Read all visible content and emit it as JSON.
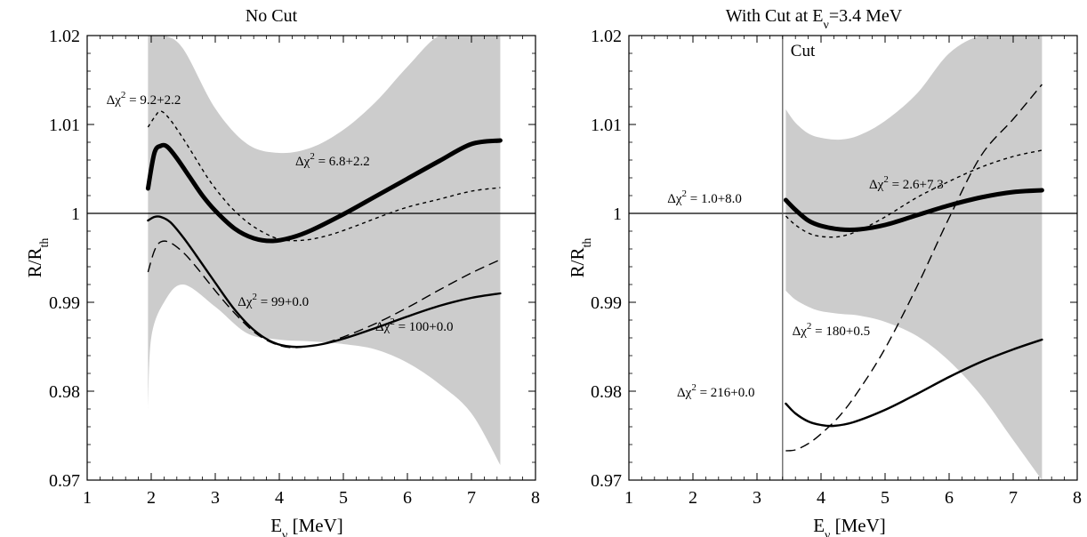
{
  "chart_data": [
    {
      "type": "line",
      "title": "No Cut",
      "xlabel": "Eν [MeV]",
      "ylabel": "R/Rth",
      "xlim": [
        1,
        8
      ],
      "ylim": [
        0.97,
        1.02
      ],
      "x_ticks": [
        "1",
        "2",
        "3",
        "4",
        "5",
        "6",
        "7",
        "8"
      ],
      "y_ticks": [
        "0.97",
        "0.98",
        "0.99",
        "1",
        "1.01",
        "1.02"
      ],
      "reference_line": 1.0,
      "band": {
        "x": [
          1.95,
          2.0,
          2.2,
          2.5,
          3.0,
          3.5,
          4.0,
          4.5,
          5.0,
          5.5,
          6.0,
          6.5,
          7.0,
          7.45
        ],
        "upper": [
          1.02,
          1.02,
          1.02,
          1.0185,
          1.0118,
          1.0078,
          1.0068,
          1.0074,
          1.0094,
          1.0125,
          1.0165,
          1.0205,
          1.0205,
          1.0205
        ],
        "lower": [
          0.978,
          0.986,
          0.99,
          0.992,
          0.9895,
          0.9865,
          0.9858,
          0.9856,
          0.9853,
          0.9847,
          0.9832,
          0.9808,
          0.9775,
          0.9717
        ]
      },
      "series": [
        {
          "label": "Δχ² = 6.8+2.2",
          "style": "thick",
          "x": [
            1.95,
            2.05,
            2.15,
            2.25,
            2.4,
            2.6,
            2.8,
            3.0,
            3.3,
            3.6,
            3.9,
            4.2,
            4.5,
            5.0,
            5.5,
            6.0,
            6.5,
            7.0,
            7.45
          ],
          "y": [
            1.0028,
            1.0068,
            1.0076,
            1.0075,
            1.0062,
            1.0041,
            1.002,
            1.0003,
            0.9983,
            0.9972,
            0.9969,
            0.9973,
            0.9981,
            0.9999,
            1.0019,
            1.0039,
            1.0059,
            1.0078,
            1.0082
          ]
        },
        {
          "label": "Δχ² = 9.2+2.2",
          "style": "short-dash",
          "x": [
            1.95,
            2.05,
            2.15,
            2.3,
            2.5,
            2.7,
            2.9,
            3.1,
            3.3,
            3.6,
            4.0,
            4.4,
            4.8,
            5.2,
            5.6,
            6.0,
            6.5,
            7.0,
            7.45
          ],
          "y": [
            1.0097,
            1.0108,
            1.0115,
            1.0105,
            1.0084,
            1.0061,
            1.0038,
            1.0019,
            1.0003,
            0.9985,
            0.9971,
            0.997,
            0.9976,
            0.9986,
            0.9997,
            1.0007,
            1.0016,
            1.0025,
            1.0029
          ]
        },
        {
          "label": "Δχ² = 99+0.0",
          "style": "long-dash",
          "x": [
            1.95,
            2.05,
            2.15,
            2.3,
            2.5,
            2.7,
            3.0,
            3.3,
            3.6,
            3.9,
            4.2,
            4.6,
            5.0,
            5.5,
            6.0,
            6.5,
            7.0,
            7.45
          ],
          "y": [
            0.9934,
            0.9958,
            0.9968,
            0.9967,
            0.9956,
            0.994,
            0.9913,
            0.9888,
            0.9867,
            0.9854,
            0.9849,
            0.9852,
            0.9861,
            0.9876,
            0.9894,
            0.9914,
            0.9933,
            0.9948
          ]
        },
        {
          "label": "Δχ² = 100+0.0",
          "style": "solid",
          "x": [
            1.95,
            2.05,
            2.15,
            2.3,
            2.5,
            2.7,
            3.0,
            3.3,
            3.6,
            3.9,
            4.2,
            4.6,
            5.0,
            5.5,
            6.0,
            6.5,
            7.0,
            7.45
          ],
          "y": [
            0.9992,
            0.9996,
            0.9996,
            0.999,
            0.9973,
            0.9953,
            0.9922,
            0.9892,
            0.9869,
            0.9855,
            0.985,
            0.9852,
            0.9859,
            0.9871,
            0.9884,
            0.9896,
            0.9905,
            0.991
          ]
        }
      ],
      "annotations": [
        {
          "text": "Δχ² = 9.2+2.2",
          "x": 1.3,
          "y": 1.0123
        },
        {
          "text": "Δχ² = 6.8+2.2",
          "x": 4.25,
          "y": 1.0054
        },
        {
          "text": "Δχ² = 99+0.0",
          "x": 3.35,
          "y": 0.9896
        },
        {
          "text": "Δχ² = 100+0.0",
          "x": 5.5,
          "y": 0.9868
        }
      ]
    },
    {
      "type": "line",
      "title": "With Cut at Eν=3.4 MeV",
      "xlabel": "Eν [MeV]",
      "ylabel": "R/Rth",
      "xlim": [
        1,
        8
      ],
      "ylim": [
        0.97,
        1.02
      ],
      "x_ticks": [
        "1",
        "2",
        "3",
        "4",
        "5",
        "6",
        "7",
        "8"
      ],
      "y_ticks": [
        "0.97",
        "0.98",
        "0.99",
        "1",
        "1.01",
        "1.02"
      ],
      "reference_line": 1.0,
      "cut": {
        "x": 3.4,
        "label": "Cut"
      },
      "band": {
        "x": [
          3.45,
          3.6,
          3.8,
          4.0,
          4.3,
          4.6,
          5.0,
          5.5,
          6.0,
          6.5,
          7.0,
          7.45
        ],
        "upper": [
          1.0117,
          1.0102,
          1.009,
          1.0085,
          1.0083,
          1.0088,
          1.0104,
          1.0135,
          1.018,
          1.0205,
          1.0205,
          1.0205
        ],
        "lower": [
          0.9913,
          0.9903,
          0.9895,
          0.989,
          0.9887,
          0.9885,
          0.9878,
          0.9862,
          0.9834,
          0.9795,
          0.9745,
          0.9685
        ]
      },
      "series": [
        {
          "label": "Δχ² = 2.6+7.3",
          "style": "thick",
          "x": [
            3.45,
            3.6,
            3.8,
            4.0,
            4.3,
            4.6,
            5.0,
            5.5,
            6.0,
            6.5,
            7.0,
            7.45
          ],
          "y": [
            1.0015,
            1.0004,
            0.9992,
            0.9986,
            0.9982,
            0.9982,
            0.9987,
            0.9998,
            1.0009,
            1.0018,
            1.0024,
            1.0026
          ]
        },
        {
          "label": "Δχ² = 1.0+8.0",
          "style": "short-dash",
          "x": [
            3.45,
            3.6,
            3.8,
            4.0,
            4.3,
            4.6,
            5.0,
            5.5,
            6.0,
            6.5,
            7.0,
            7.45
          ],
          "y": [
            0.9997,
            0.9987,
            0.9978,
            0.9974,
            0.9974,
            0.9981,
            0.9996,
            1.0018,
            1.0036,
            1.0052,
            1.0064,
            1.0071
          ]
        },
        {
          "label": "Δχ² = 180+0.5",
          "style": "long-dash",
          "x": [
            3.45,
            3.6,
            3.8,
            4.0,
            4.3,
            4.6,
            5.0,
            5.5,
            6.0,
            6.5,
            7.0,
            7.45
          ],
          "y": [
            0.9733,
            0.9734,
            0.9741,
            0.9752,
            0.9773,
            0.9802,
            0.9848,
            0.9918,
            0.9995,
            1.0065,
            1.0106,
            1.0145
          ]
        },
        {
          "label": "Δχ² = 216+0.0",
          "style": "solid",
          "x": [
            3.45,
            3.6,
            3.8,
            4.0,
            4.2,
            4.5,
            5.0,
            5.5,
            6.0,
            6.5,
            7.0,
            7.45
          ],
          "y": [
            0.9786,
            0.9775,
            0.9766,
            0.9762,
            0.9761,
            0.9765,
            0.9779,
            0.9797,
            0.9816,
            0.9833,
            0.9847,
            0.9858
          ]
        }
      ],
      "annotations": [
        {
          "text": "Δχ² = 1.0+8.0",
          "x": 1.6,
          "y": 1.0012
        },
        {
          "text": "Δχ² = 2.6+7.3",
          "x": 4.75,
          "y": 1.0028
        },
        {
          "text": "Δχ² = 180+0.5",
          "x": 3.55,
          "y": 0.9863
        },
        {
          "text": "Δχ² = 216+0.0",
          "x": 1.75,
          "y": 0.9794
        }
      ]
    }
  ]
}
